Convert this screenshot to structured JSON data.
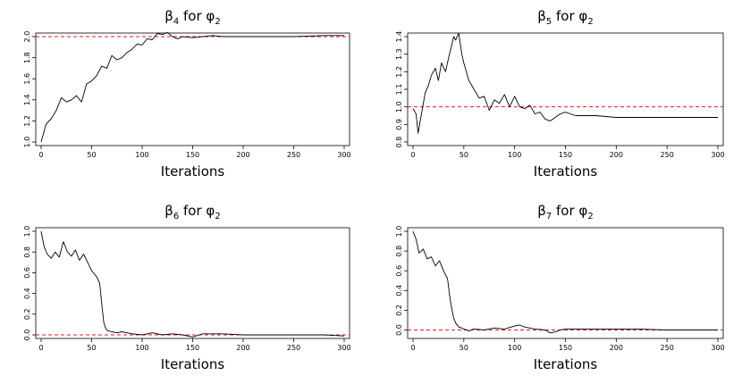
{
  "chart_data": [
    {
      "type": "line",
      "title_parts": {
        "beta": "β",
        "beta_sub": "4",
        "mid": " for ",
        "phi": "φ",
        "phi_sub": "2"
      },
      "xlabel": "Iterations",
      "ylabel": "",
      "xlim": [
        0,
        300
      ],
      "ylim": [
        1.0,
        2.0
      ],
      "x_ticks": [
        "0",
        "50",
        "100",
        "150",
        "200",
        "250",
        "300"
      ],
      "y_ticks": [
        "1.0",
        "1.2",
        "1.4",
        "1.6",
        "1.8",
        "2.0"
      ],
      "reference_line": {
        "y": 2.0,
        "color": "#e41a1c",
        "style": "dashed"
      },
      "series": [
        {
          "color": "#000000",
          "x": [
            0,
            5,
            10,
            15,
            20,
            25,
            30,
            35,
            40,
            45,
            50,
            55,
            60,
            65,
            70,
            75,
            80,
            85,
            90,
            95,
            100,
            105,
            110,
            115,
            120,
            125,
            130,
            135,
            140,
            150,
            160,
            170,
            180,
            200,
            220,
            250,
            280,
            300
          ],
          "values": [
            1.0,
            1.17,
            1.22,
            1.3,
            1.42,
            1.38,
            1.4,
            1.44,
            1.38,
            1.55,
            1.58,
            1.63,
            1.72,
            1.7,
            1.82,
            1.78,
            1.8,
            1.85,
            1.88,
            1.93,
            1.92,
            1.98,
            1.97,
            2.03,
            2.02,
            2.04,
            2.0,
            1.98,
            2.0,
            1.99,
            2.0,
            2.01,
            2.0,
            2.0,
            2.0,
            2.0,
            2.01,
            2.01
          ]
        }
      ]
    },
    {
      "type": "line",
      "title_parts": {
        "beta": "β",
        "beta_sub": "5",
        "mid": " for ",
        "phi": "φ",
        "phi_sub": "2"
      },
      "xlabel": "Iterations",
      "ylabel": "",
      "xlim": [
        0,
        300
      ],
      "ylim": [
        0.8,
        1.4
      ],
      "x_ticks": [
        "0",
        "50",
        "100",
        "150",
        "200",
        "250",
        "300"
      ],
      "y_ticks": [
        "0.8",
        "0.9",
        "1.0",
        "1.1",
        "1.2",
        "1.3",
        "1.4"
      ],
      "reference_line": {
        "y": 1.0,
        "color": "#e41a1c",
        "style": "dashed"
      },
      "series": [
        {
          "color": "#000000",
          "x": [
            0,
            3,
            5,
            8,
            12,
            15,
            18,
            22,
            25,
            28,
            32,
            35,
            38,
            40,
            42,
            45,
            48,
            50,
            55,
            60,
            65,
            70,
            75,
            80,
            85,
            90,
            95,
            100,
            105,
            110,
            115,
            120,
            125,
            130,
            135,
            140,
            145,
            150,
            160,
            170,
            180,
            200,
            220,
            250,
            280,
            300
          ],
          "values": [
            0.99,
            0.96,
            0.85,
            0.95,
            1.08,
            1.12,
            1.18,
            1.22,
            1.15,
            1.25,
            1.2,
            1.28,
            1.35,
            1.4,
            1.38,
            1.42,
            1.3,
            1.25,
            1.15,
            1.1,
            1.05,
            1.06,
            0.98,
            1.04,
            1.02,
            1.07,
            1.0,
            1.06,
            1.0,
            0.99,
            1.01,
            0.96,
            0.97,
            0.93,
            0.92,
            0.94,
            0.96,
            0.97,
            0.95,
            0.95,
            0.95,
            0.94,
            0.94,
            0.94,
            0.94,
            0.94
          ]
        }
      ]
    },
    {
      "type": "line",
      "title_parts": {
        "beta": "β",
        "beta_sub": "6",
        "mid": " for ",
        "phi": "φ",
        "phi_sub": "2"
      },
      "xlabel": "Iterations",
      "ylabel": "",
      "xlim": [
        0,
        300
      ],
      "ylim": [
        0.0,
        1.0
      ],
      "x_ticks": [
        "0",
        "50",
        "100",
        "150",
        "200",
        "250",
        "300"
      ],
      "y_ticks": [
        "0.0",
        "0.2",
        "0.4",
        "0.6",
        "0.8",
        "1.0"
      ],
      "reference_line": {
        "y": 0.0,
        "color": "#e41a1c",
        "style": "dashed"
      },
      "series": [
        {
          "color": "#000000",
          "x": [
            0,
            3,
            6,
            10,
            14,
            18,
            22,
            26,
            30,
            34,
            38,
            42,
            46,
            50,
            55,
            58,
            60,
            62,
            64,
            66,
            70,
            75,
            80,
            90,
            100,
            110,
            120,
            130,
            140,
            150,
            160,
            170,
            180,
            200,
            220,
            250,
            280,
            300
          ],
          "values": [
            1.0,
            0.85,
            0.78,
            0.74,
            0.8,
            0.75,
            0.9,
            0.8,
            0.76,
            0.82,
            0.72,
            0.78,
            0.7,
            0.62,
            0.56,
            0.5,
            0.3,
            0.12,
            0.06,
            0.04,
            0.03,
            0.02,
            0.03,
            0.01,
            0.0,
            0.02,
            0.0,
            0.01,
            0.0,
            -0.02,
            0.01,
            0.01,
            0.01,
            0.0,
            0.0,
            0.0,
            0.0,
            -0.01
          ]
        }
      ]
    },
    {
      "type": "line",
      "title_parts": {
        "beta": "β",
        "beta_sub": "7",
        "mid": " for ",
        "phi": "φ",
        "phi_sub": "2"
      },
      "xlabel": "Iterations",
      "ylabel": "",
      "xlim": [
        0,
        300
      ],
      "ylim": [
        -0.05,
        1.0
      ],
      "x_ticks": [
        "0",
        "50",
        "100",
        "150",
        "200",
        "250",
        "300"
      ],
      "y_ticks": [
        "0.0",
        "0.2",
        "0.4",
        "0.6",
        "0.8",
        "1.0"
      ],
      "reference_line": {
        "y": 0.0,
        "color": "#e41a1c",
        "style": "dashed"
      },
      "series": [
        {
          "color": "#000000",
          "x": [
            0,
            3,
            6,
            10,
            14,
            18,
            22,
            26,
            30,
            34,
            36,
            38,
            40,
            42,
            45,
            48,
            50,
            55,
            60,
            70,
            80,
            90,
            100,
            105,
            110,
            120,
            130,
            135,
            140,
            145,
            150,
            160,
            170,
            180,
            200,
            220,
            250,
            280,
            300
          ],
          "values": [
            1.0,
            0.92,
            0.78,
            0.82,
            0.72,
            0.74,
            0.65,
            0.7,
            0.6,
            0.52,
            0.35,
            0.22,
            0.12,
            0.07,
            0.03,
            0.02,
            0.01,
            -0.01,
            0.01,
            0.0,
            0.02,
            0.01,
            0.04,
            0.05,
            0.03,
            0.01,
            0.0,
            -0.03,
            -0.02,
            0.0,
            0.01,
            0.01,
            0.01,
            0.01,
            0.01,
            0.01,
            0.0,
            0.0,
            0.0
          ]
        }
      ]
    }
  ]
}
